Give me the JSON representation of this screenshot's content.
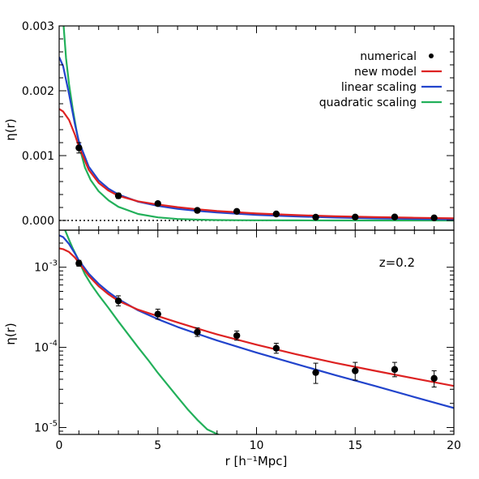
{
  "chart_data": [
    {
      "type": "line",
      "panel": "top",
      "scale": "linear",
      "xlim": [
        0,
        20
      ],
      "ylim": [
        -0.00015,
        0.003
      ],
      "yticks": [
        0.0,
        0.001,
        0.002,
        0.003
      ],
      "ytick_labels": [
        "0.000",
        "0.001",
        "0.002",
        "0.003"
      ],
      "ylabel": "η(r)",
      "legend_position": "top-right",
      "zero_line": "dotted",
      "legend": [
        {
          "name": "numerical",
          "color": "#000000",
          "marker": "dot"
        },
        {
          "name": "new model",
          "color": "#dd2222"
        },
        {
          "name": "linear scaling",
          "color": "#2244cc"
        },
        {
          "name": "quadratic scaling",
          "color": "#22b05a"
        }
      ],
      "points": {
        "x": [
          1,
          3,
          5,
          7,
          9,
          11,
          13,
          15,
          17,
          19
        ],
        "y": [
          0.00112,
          0.00038,
          0.00026,
          0.000155,
          0.00014,
          0.0001,
          5e-05,
          5.2e-05,
          5.3e-05,
          4e-05
        ],
        "err": [
          8e-05,
          4e-05,
          3e-05,
          2e-05,
          2e-05,
          1.5e-05,
          1.5e-05,
          1.2e-05,
          1.2e-05,
          1.2e-05
        ]
      },
      "series": [
        {
          "name": "new model",
          "color": "#dd2222",
          "x": [
            0,
            0.2,
            0.5,
            0.8,
            1,
            1.5,
            2,
            2.5,
            3,
            4,
            5,
            6,
            7,
            8,
            10,
            12,
            14,
            16,
            18,
            20
          ],
          "y": [
            0.00172,
            0.00168,
            0.00155,
            0.00132,
            0.00114,
            0.00078,
            0.00058,
            0.00046,
            0.00038,
            0.000295,
            0.000245,
            0.000205,
            0.000172,
            0.000145,
            0.000108,
            8.2e-05,
            6.4e-05,
            5.1e-05,
            4.1e-05,
            3.3e-05
          ]
        },
        {
          "name": "linear scaling",
          "color": "#2244cc",
          "x": [
            0,
            0.2,
            0.5,
            0.8,
            1,
            1.5,
            2,
            2.5,
            3,
            4,
            5,
            6,
            7,
            8,
            10,
            12,
            14,
            16,
            18,
            20
          ],
          "y": [
            0.00252,
            0.00238,
            0.00195,
            0.00148,
            0.00122,
            0.00083,
            0.00062,
            0.00049,
            0.0004,
            0.00029,
            0.000225,
            0.00018,
            0.000148,
            0.000122,
            8.6e-05,
            6.2e-05,
            4.5e-05,
            3.3e-05,
            2.4e-05,
            1.75e-05
          ]
        },
        {
          "name": "quadratic scaling",
          "color": "#22b05a",
          "x": [
            0.2,
            0.35,
            0.5,
            0.7,
            0.9,
            1.1,
            1.3,
            1.6,
            2,
            2.5,
            3,
            4,
            5,
            6,
            7,
            8,
            9,
            10,
            12,
            14,
            16,
            18,
            20
          ],
          "y": [
            0.0031,
            0.0025,
            0.0021,
            0.0017,
            0.00135,
            0.00105,
            0.00082,
            0.00062,
            0.00045,
            0.00031,
            0.00021,
            0.0001,
            4.8e-05,
            2.3e-05,
            1.2e-05,
            6.2e-06,
            4e-06,
            2e-06,
            1e-06,
            5e-07,
            3e-07,
            2e-07,
            1e-07
          ]
        }
      ]
    },
    {
      "type": "line",
      "panel": "bottom",
      "scale": "log",
      "xlim": [
        0,
        20
      ],
      "ylim": [
        8.2e-06,
        0.0029
      ],
      "xticks": [
        0,
        5,
        10,
        15,
        20
      ],
      "xtick_labels": [
        "0",
        "5",
        "10",
        "15",
        "20"
      ],
      "xlabel": "r [h⁻¹Mpc]",
      "ylabel": "η(r)",
      "ytick_labels": [
        {
          "value": 0.001,
          "base": "10",
          "exp": "-3"
        },
        {
          "value": 0.0001,
          "base": "10",
          "exp": "-4"
        },
        {
          "value": 1e-05,
          "base": "10",
          "exp": "-5"
        }
      ],
      "annotation": "z=0.2",
      "points": {
        "x": [
          1,
          3,
          5,
          7,
          9,
          11,
          13,
          15,
          17,
          19
        ],
        "y": [
          0.00112,
          0.00038,
          0.00026,
          0.000155,
          0.00014,
          9.75e-05,
          4.85e-05,
          5.1e-05,
          5.3e-05,
          4.1e-05
        ],
        "err_lo": [
          9e-05,
          5e-05,
          3.5e-05,
          1.8e-05,
          1.7e-05,
          1.3e-05,
          1.3e-05,
          1.2e-05,
          1e-05,
          9e-06
        ],
        "err_hi": [
          0.0001,
          6e-05,
          4e-05,
          2e-05,
          2e-05,
          1.5e-05,
          1.5e-05,
          1.4e-05,
          1.2e-05,
          1e-05
        ]
      },
      "series": [
        {
          "name": "new model",
          "color": "#dd2222",
          "x": [
            0,
            0.2,
            0.5,
            0.8,
            1,
            1.5,
            2,
            2.5,
            3,
            4,
            5,
            6,
            7,
            8,
            10,
            12,
            14,
            16,
            18,
            20
          ],
          "y": [
            0.00172,
            0.00168,
            0.00155,
            0.00132,
            0.00114,
            0.00078,
            0.00058,
            0.00046,
            0.00038,
            0.000295,
            0.000245,
            0.000205,
            0.000172,
            0.000145,
            0.000108,
            8.2e-05,
            6.4e-05,
            5.1e-05,
            4.1e-05,
            3.3e-05
          ]
        },
        {
          "name": "linear scaling",
          "color": "#2244cc",
          "x": [
            0,
            0.2,
            0.5,
            0.8,
            1,
            1.5,
            2,
            2.5,
            3,
            4,
            5,
            6,
            7,
            8,
            10,
            12,
            14,
            16,
            18,
            20
          ],
          "y": [
            0.0025,
            0.00238,
            0.00195,
            0.00148,
            0.00122,
            0.00083,
            0.00062,
            0.00049,
            0.0004,
            0.00029,
            0.000225,
            0.00018,
            0.000148,
            0.000122,
            8.6e-05,
            6.2e-05,
            4.5e-05,
            3.3e-05,
            2.4e-05,
            1.75e-05
          ]
        },
        {
          "name": "quadratic scaling",
          "color": "#22b05a",
          "x": [
            0.3,
            0.5,
            0.7,
            0.9,
            1.1,
            1.3,
            1.6,
            2,
            2.5,
            3,
            3.5,
            4,
            4.5,
            5,
            5.5,
            6,
            6.5,
            7,
            7.5,
            8,
            8.1
          ],
          "y": [
            0.0029,
            0.0022,
            0.0017,
            0.00135,
            0.00105,
            0.00082,
            0.00062,
            0.00045,
            0.00031,
            0.00021,
            0.000145,
            0.0001,
            7e-05,
            4.8e-05,
            3.4e-05,
            2.4e-05,
            1.7e-05,
            1.25e-05,
            9.5e-06,
            8.3e-06,
            8.1e-06
          ]
        }
      ]
    }
  ]
}
